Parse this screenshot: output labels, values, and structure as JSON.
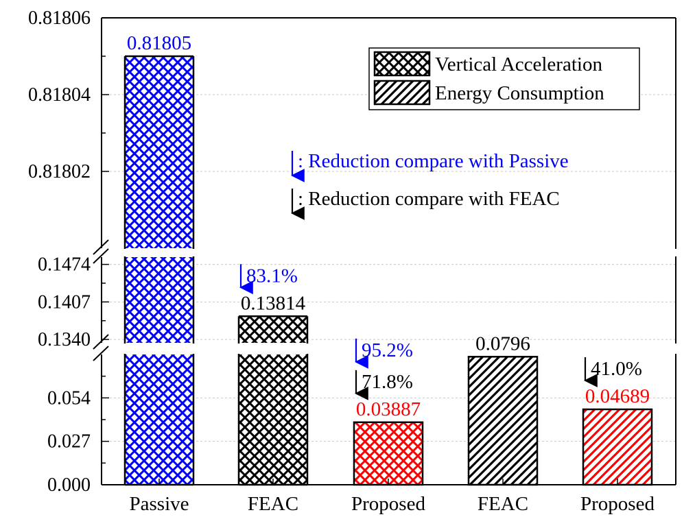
{
  "chart_data": {
    "type": "bar",
    "title": "",
    "xlabel": "",
    "ylabel": "",
    "y_axis_segments": [
      {
        "ticks": [
          0.0,
          0.027,
          0.054
        ],
        "ylim": [
          0,
          0.081
        ]
      },
      {
        "ticks": [
          0.134,
          0.1407,
          0.1474
        ],
        "ylim": [
          0.1334,
          0.1487
        ]
      },
      {
        "ticks": [
          0.81802,
          0.81804,
          0.81806
        ],
        "ylim": [
          0.818,
          0.81806
        ]
      }
    ],
    "categories": [
      "Passive",
      "FEAC",
      "Proposed",
      "FEAC",
      "Proposed"
    ],
    "series": [
      {
        "name": "Vertical Acceleration",
        "pattern": "crosshatch"
      },
      {
        "name": "Energy Consumption",
        "pattern": "diagonal"
      }
    ],
    "bars": [
      {
        "category": "Passive",
        "series": "Vertical Acceleration",
        "value": 0.81805,
        "label": "0.81805",
        "color": "#0000ff",
        "label_color": "#0000ff"
      },
      {
        "category": "FEAC",
        "series": "Vertical Acceleration",
        "value": 0.13814,
        "label": "0.13814",
        "color": "#000000",
        "label_color": "#000000"
      },
      {
        "category": "Proposed",
        "series": "Vertical Acceleration",
        "value": 0.03887,
        "label": "0.03887",
        "color": "#ff0000",
        "label_color": "#ff0000"
      },
      {
        "category": "FEAC",
        "series": "Energy Consumption",
        "value": 0.0796,
        "label": "0.0796",
        "color": "#000000",
        "label_color": "#000000"
      },
      {
        "category": "Proposed",
        "series": "Energy Consumption",
        "value": 0.04689,
        "label": "0.04689",
        "color": "#ff0000",
        "label_color": "#ff0000"
      }
    ],
    "annotations": [
      {
        "bar_index": 1,
        "text": "83.1%",
        "color": "#0000ff"
      },
      {
        "bar_index": 2,
        "text": "95.2%",
        "color": "#0000ff"
      },
      {
        "bar_index": 2,
        "text": "71.8%",
        "color": "#000000"
      },
      {
        "bar_index": 4,
        "text": "41.0%",
        "color": "#000000"
      }
    ],
    "notes": [
      {
        "text": ": Reduction compare with Passive",
        "color": "#0000ff"
      },
      {
        "text": ": Reduction compare with FEAC",
        "color": "#000000"
      }
    ],
    "legend_position": "top-right",
    "grid": "horizontal dashed"
  }
}
